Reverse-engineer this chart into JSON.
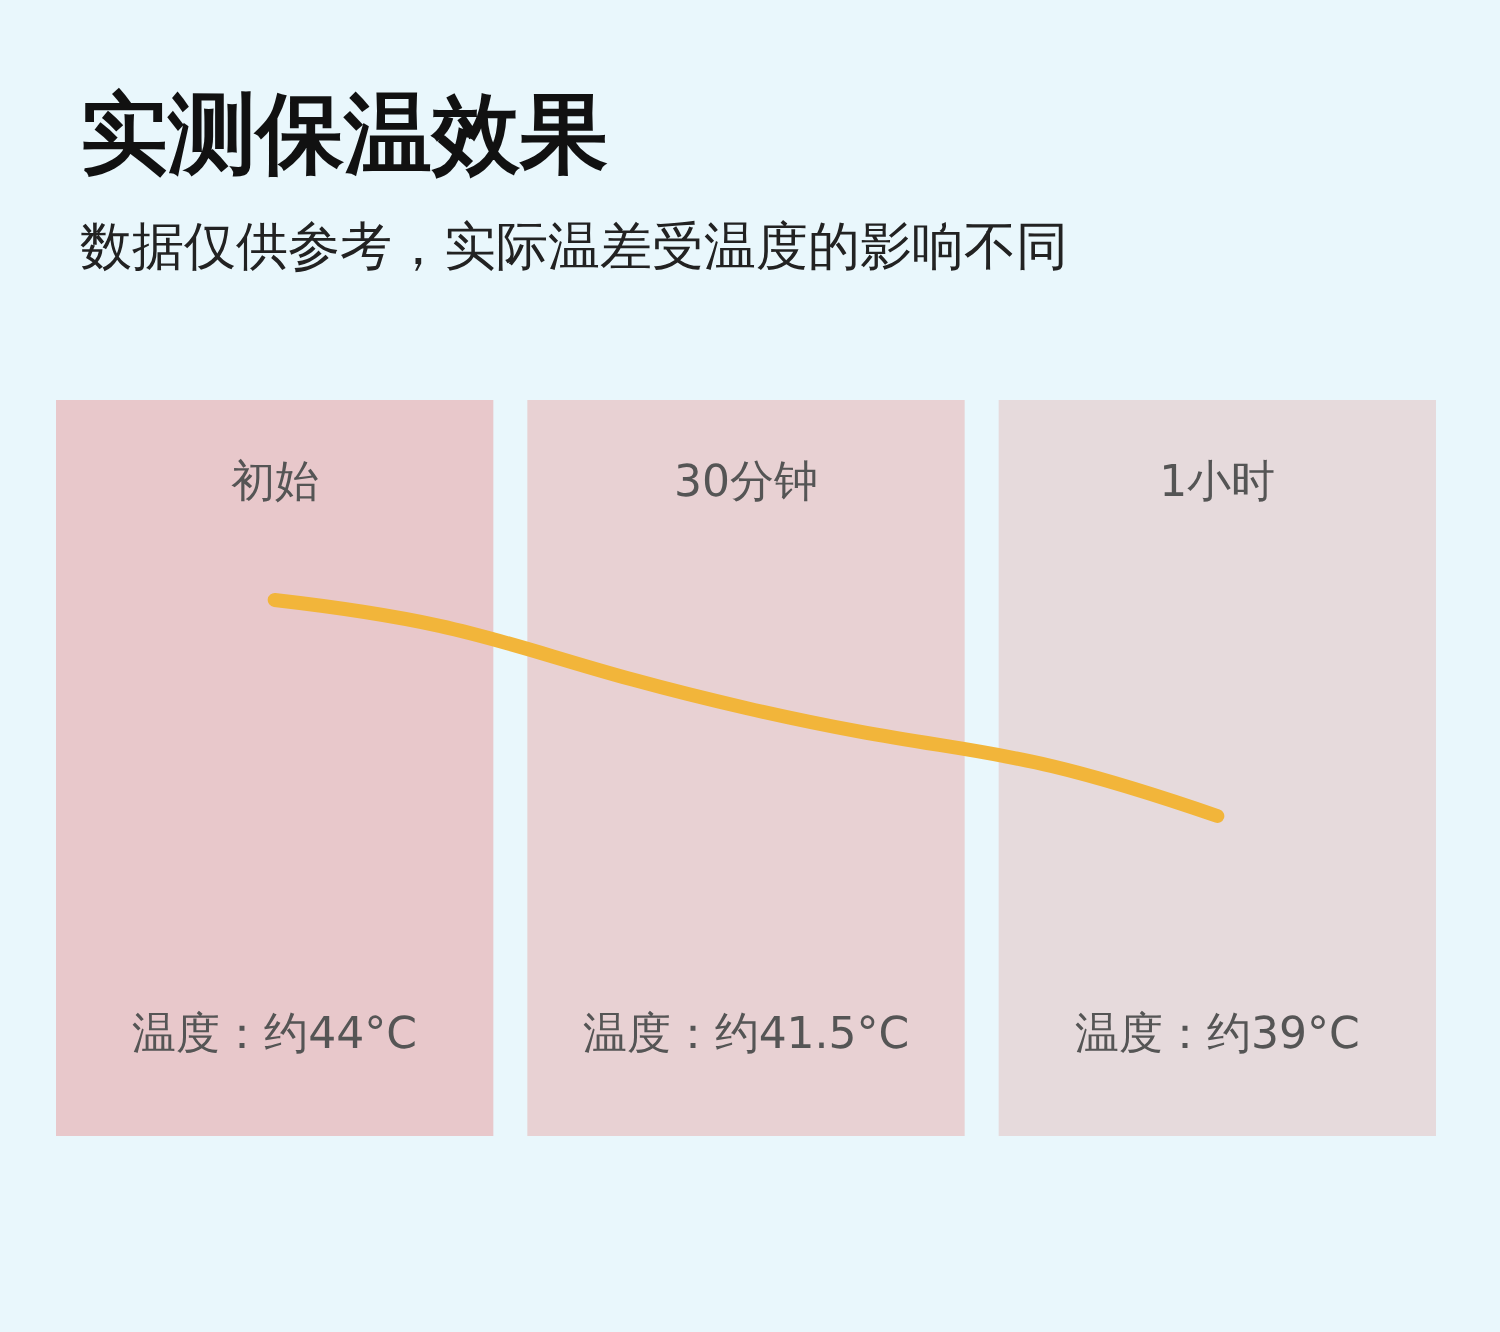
{
  "chart_data": {
    "type": "line",
    "title": "实测保温效果",
    "subtitle": "数据仅供参考，实际温差受温度的影响不同",
    "categories": [
      "初始",
      "30分钟",
      "1小时"
    ],
    "series": [
      {
        "color": "#f2b53a",
        "values": [
          44,
          41.5,
          39
        ],
        "value_labels": [
          "温度：约44°C",
          "温度：约41.5°C",
          "温度：约39°C"
        ]
      }
    ],
    "marker": "none",
    "bands": [
      {
        "axis": "x",
        "from": "初始",
        "to": "初始",
        "color": "#e8c8cb"
      },
      {
        "axis": "x",
        "from": "30分钟",
        "to": "30分钟",
        "color": "#e8d1d3"
      },
      {
        "axis": "x",
        "from": "1小时",
        "to": "1小时",
        "color": "#e6dadc"
      }
    ]
  }
}
